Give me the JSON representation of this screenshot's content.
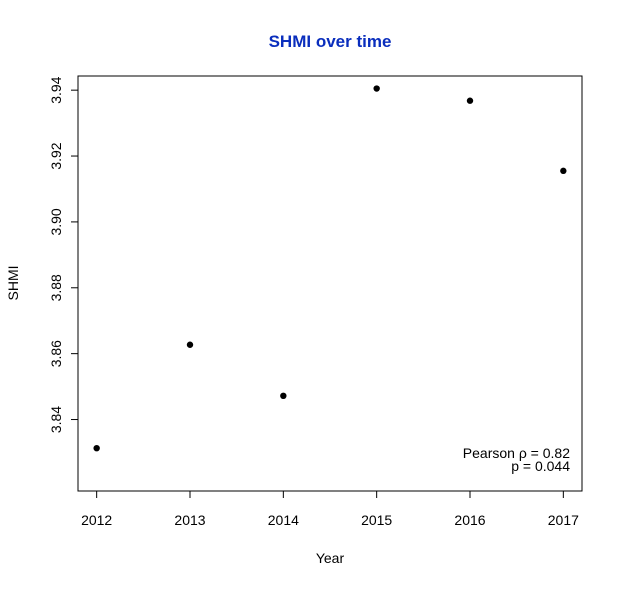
{
  "chart_data": {
    "type": "scatter",
    "title": "SHMI over time",
    "title_color": "#0a2ebd",
    "xlabel": "Year",
    "ylabel": "SHMI",
    "x": [
      2012,
      2013,
      2014,
      2015,
      2016,
      2017
    ],
    "y": [
      3.8313,
      3.8627,
      3.8472,
      3.9405,
      3.9368,
      3.9155
    ],
    "xlim": [
      2011.8,
      2017.2
    ],
    "ylim": [
      3.8183,
      3.9443
    ],
    "x_ticks": [
      "2012",
      "2013",
      "2014",
      "2015",
      "2016",
      "2017"
    ],
    "y_ticks": [
      "3.84",
      "3.86",
      "3.88",
      "3.90",
      "3.92",
      "3.94"
    ],
    "annotation": {
      "line1": "Pearson ρ = 0.82",
      "line2": "p = 0.044",
      "position": "bottom-right"
    },
    "point_color": "#000000",
    "grid": false,
    "legend": "none"
  }
}
